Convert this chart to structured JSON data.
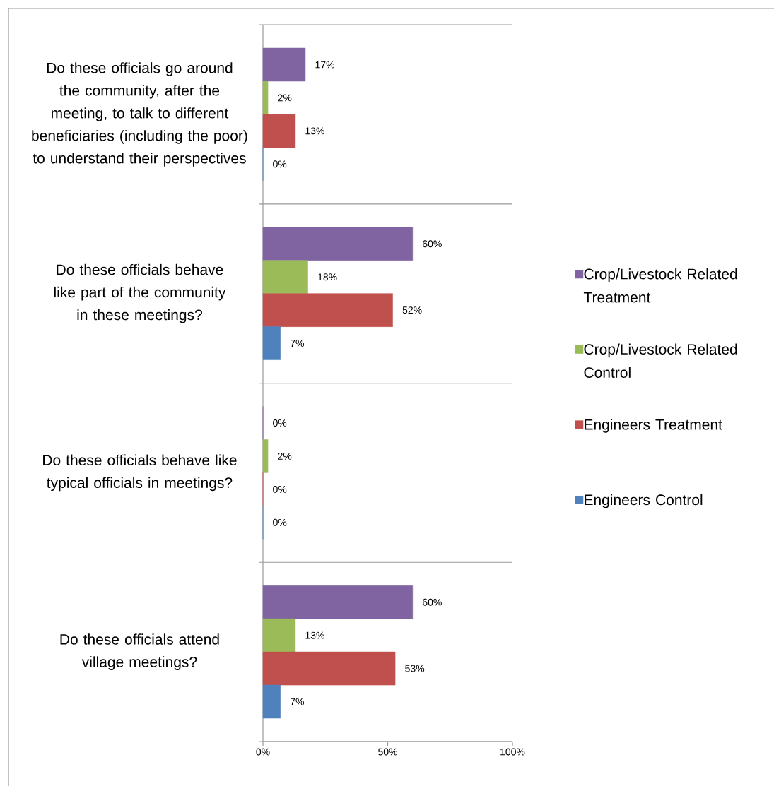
{
  "chart_data": {
    "type": "bar",
    "orientation": "horizontal",
    "categories": [
      "Do these officials go around the community, after the meeting, to talk to different beneficiaries (including the poor) to understand their perspectives",
      "Do these officials behave like part of the community in these meetings?",
      "Do these officials behave like typical officials in meetings?",
      "Do these officials attend village meetings?"
    ],
    "series": [
      {
        "name": "Crop/Livestock Related Treatment",
        "color": "#8064a2",
        "values": [
          17,
          60,
          0,
          60
        ],
        "value_labels": [
          "17%",
          "60%",
          "0%",
          "60%"
        ]
      },
      {
        "name": "Crop/Livestock Related Control",
        "color": "#9bbb59",
        "values": [
          2,
          18,
          2,
          13
        ],
        "value_labels": [
          "2%",
          "18%",
          "2%",
          "13%"
        ]
      },
      {
        "name": "Engineers Treatment",
        "color": "#c0504d",
        "values": [
          13,
          52,
          0,
          53
        ],
        "value_labels": [
          "13%",
          "52%",
          "0%",
          "53%"
        ]
      },
      {
        "name": "Engineers Control",
        "color": "#4f81bd",
        "values": [
          0,
          7,
          0,
          7
        ],
        "value_labels": [
          "0%",
          "7%",
          "0%",
          "7%"
        ]
      }
    ],
    "xlim": [
      0,
      100
    ],
    "xticks": [
      {
        "value": 0,
        "label": "0%"
      },
      {
        "value": 50,
        "label": "50%"
      },
      {
        "value": 100,
        "label": "100%"
      }
    ],
    "grid": "y",
    "legend": "right"
  }
}
